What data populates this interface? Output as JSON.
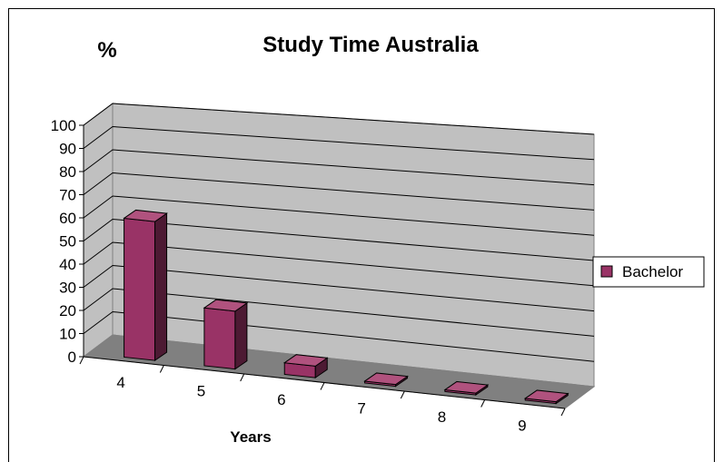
{
  "chart_data": {
    "type": "bar",
    "title": "Study Time Australia",
    "ylabel": "%",
    "xlabel": "Years",
    "categories": [
      "4",
      "5",
      "6",
      "7",
      "8",
      "9"
    ],
    "series": [
      {
        "name": "Bachelor",
        "color": "#993366",
        "values": [
          60,
          25,
          5,
          0,
          0,
          0
        ]
      }
    ],
    "ylim": [
      0,
      100
    ],
    "yticks": [
      "0",
      "10",
      "20",
      "30",
      "40",
      "50",
      "60",
      "70",
      "80",
      "90",
      "100"
    ],
    "grid": true,
    "legend": "right"
  }
}
